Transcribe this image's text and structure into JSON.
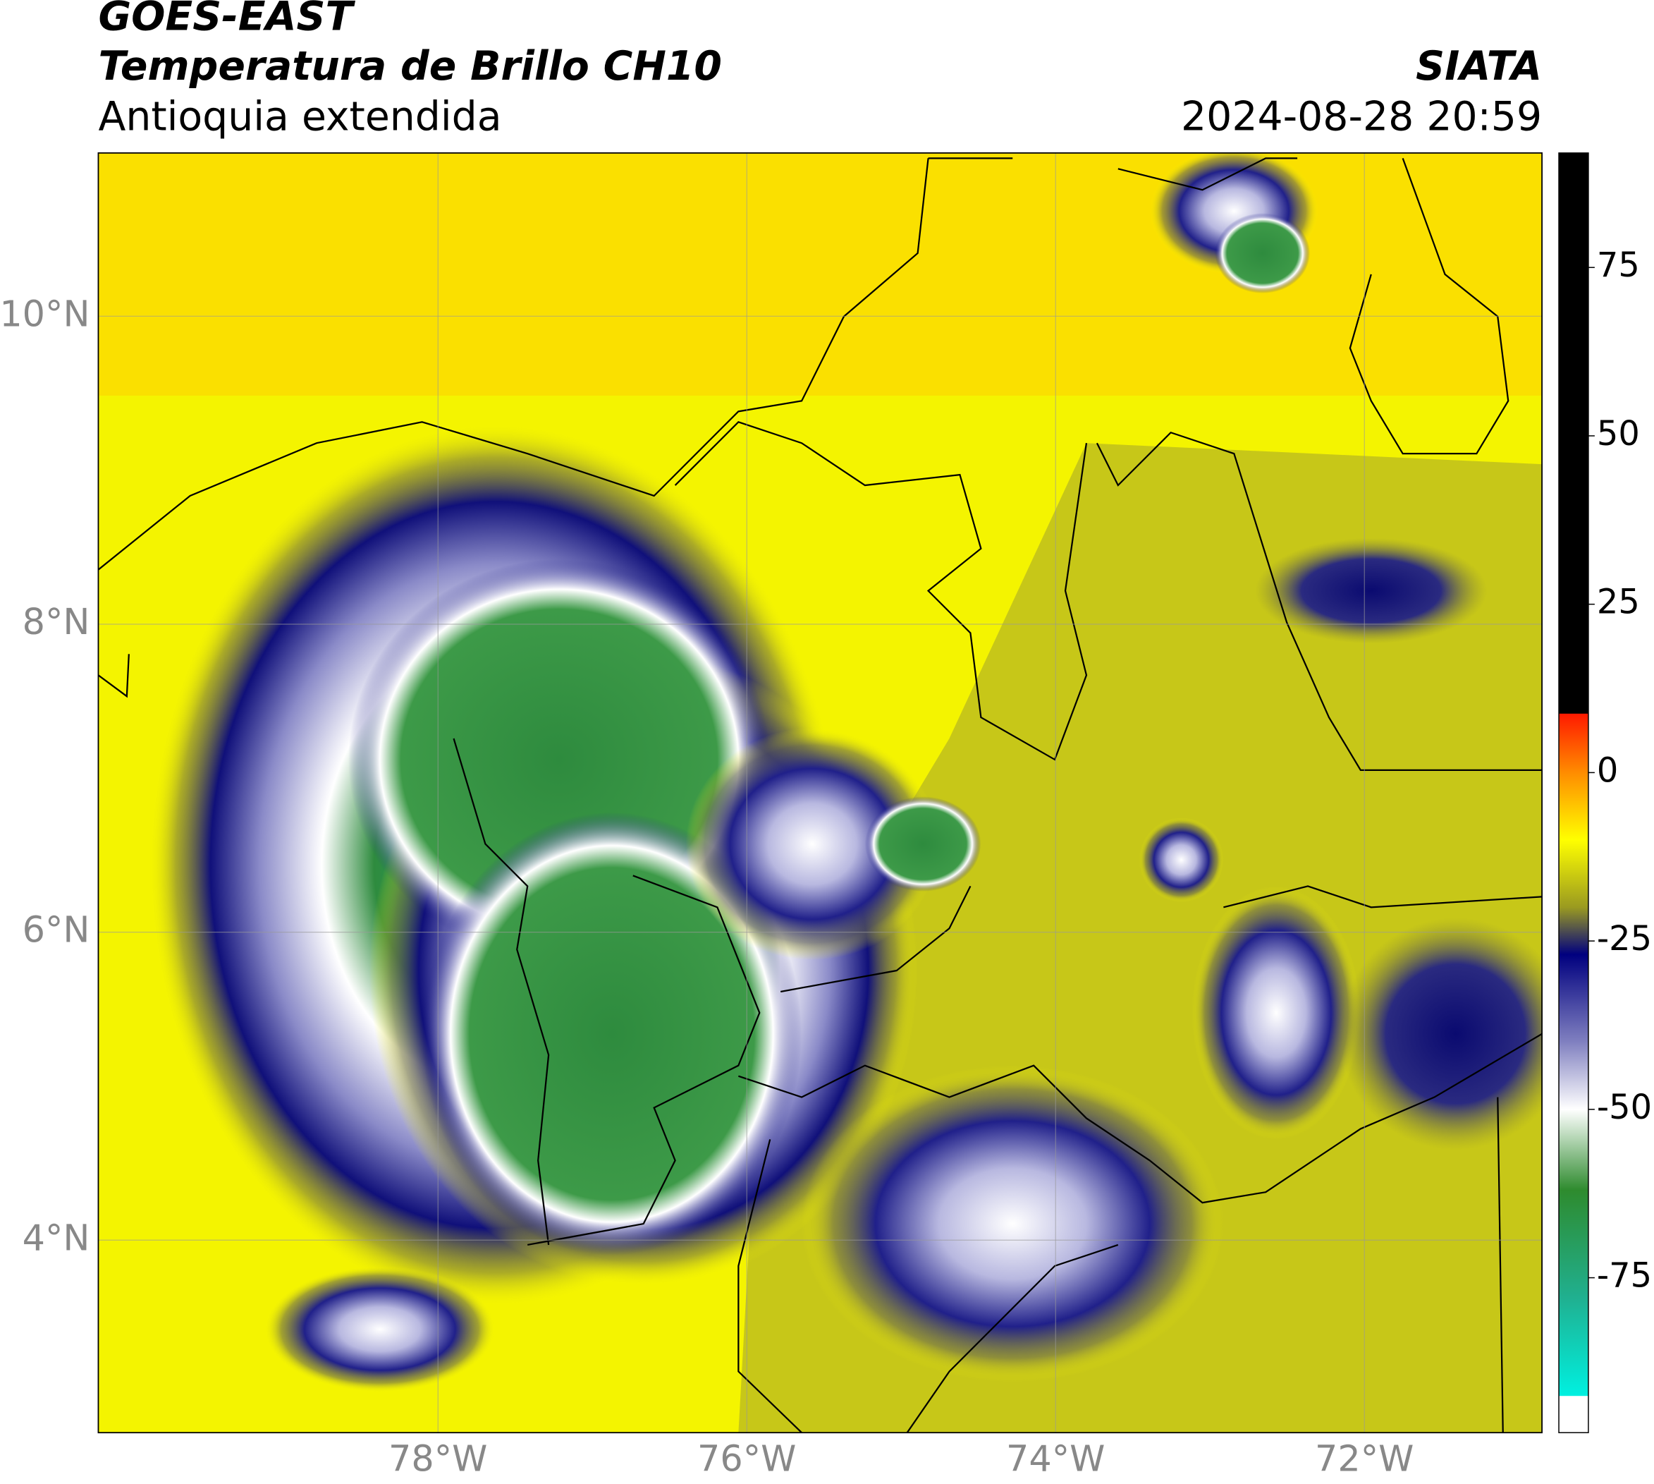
{
  "header": {
    "title": "GOES-EAST",
    "subtitle": "Temperatura de Brillo CH10",
    "region": "Antioquia extendida",
    "source": "SIATA",
    "datetime": "2024-08-28 20:59"
  },
  "map": {
    "xlim": [
      -80.2,
      -70.85
    ],
    "ylim": [
      2.75,
      11.06
    ],
    "xticks": [
      {
        "value": -78,
        "label": "78°W"
      },
      {
        "value": -76,
        "label": "76°W"
      },
      {
        "value": -74,
        "label": "74°W"
      },
      {
        "value": -72,
        "label": "72°W"
      }
    ],
    "yticks": [
      {
        "value": 4,
        "label": "4°N"
      },
      {
        "value": 6,
        "label": "6°N"
      },
      {
        "value": 8,
        "label": "8°N"
      },
      {
        "value": 10,
        "label": "10°N"
      }
    ],
    "grid": true
  },
  "colorbar": {
    "lim": [
      -98,
      92
    ],
    "ticks": [
      75,
      50,
      25,
      0,
      -25,
      -50,
      -75
    ],
    "stops": [
      {
        "value": 92,
        "color": "#000000"
      },
      {
        "value": 8.8,
        "color": "#000000"
      },
      {
        "value": 8.7,
        "color": "#ff1a00"
      },
      {
        "value": 0,
        "color": "#ff8c00"
      },
      {
        "value": -10,
        "color": "#ffff00"
      },
      {
        "value": -20,
        "color": "#9a9a20"
      },
      {
        "value": -27,
        "color": "#00007f"
      },
      {
        "value": -40,
        "color": "#8080c0"
      },
      {
        "value": -50,
        "color": "#ffffff"
      },
      {
        "value": -62,
        "color": "#2e8b2e"
      },
      {
        "value": -78,
        "color": "#20b090"
      },
      {
        "value": -92.5,
        "color": "#00f0e0"
      },
      {
        "value": -92.6,
        "color": "#ffffff"
      },
      {
        "value": -98,
        "color": "#ffffff"
      }
    ]
  }
}
